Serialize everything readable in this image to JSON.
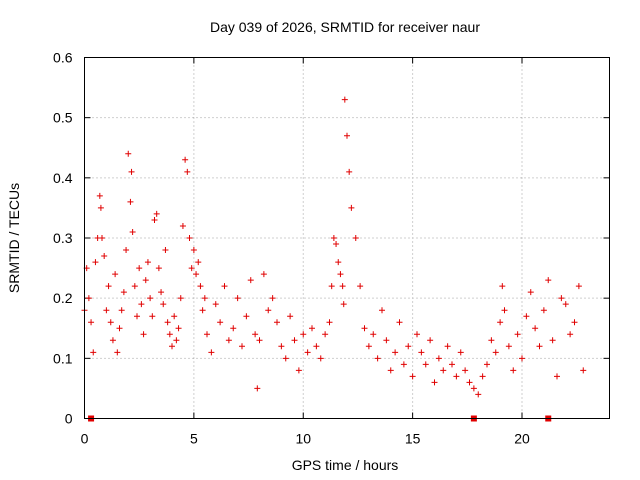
{
  "chart_data": {
    "type": "scatter",
    "title": "Day 039 of 2026, SRMTID for receiver naur",
    "xlabel": "GPS time / hours",
    "ylabel": "SRMTID / TECUs",
    "xlim": [
      0,
      24
    ],
    "ylim": [
      0,
      0.6
    ],
    "x_ticks": [
      0,
      5,
      10,
      15,
      20
    ],
    "x_tick_labels": [
      "0",
      "5",
      "10",
      "15",
      "20"
    ],
    "y_ticks": [
      0,
      0.1,
      0.2,
      0.3,
      0.4,
      0.5,
      0.6
    ],
    "y_tick_labels": [
      "0",
      "0.1",
      "0.2",
      "0.3",
      "0.4",
      "0.5",
      "0.6"
    ],
    "grid": true,
    "marker": "plus",
    "color": "#e00000",
    "series": [
      {
        "name": "SRMTID",
        "x": [
          0.0,
          0.1,
          0.2,
          0.3,
          0.4,
          0.5,
          0.6,
          0.7,
          0.75,
          0.8,
          0.9,
          1.0,
          1.1,
          1.2,
          1.3,
          1.4,
          1.5,
          1.6,
          1.7,
          1.8,
          1.9,
          2.0,
          2.1,
          2.15,
          2.2,
          2.3,
          2.4,
          2.5,
          2.6,
          2.7,
          2.8,
          2.9,
          3.0,
          3.1,
          3.2,
          3.3,
          3.4,
          3.5,
          3.6,
          3.7,
          3.8,
          3.9,
          4.0,
          4.1,
          4.2,
          4.3,
          4.4,
          4.5,
          4.6,
          4.7,
          4.8,
          4.9,
          5.0,
          5.1,
          5.2,
          5.3,
          5.4,
          5.5,
          5.6,
          5.8,
          6.0,
          6.2,
          6.4,
          6.6,
          6.8,
          7.0,
          7.2,
          7.4,
          7.6,
          7.8,
          7.9,
          8.0,
          8.2,
          8.4,
          8.6,
          8.8,
          9.0,
          9.2,
          9.4,
          9.6,
          9.8,
          10.0,
          10.2,
          10.4,
          10.6,
          10.8,
          11.0,
          11.2,
          11.3,
          11.4,
          11.5,
          11.6,
          11.7,
          11.8,
          11.85,
          11.9,
          12.0,
          12.1,
          12.2,
          12.4,
          12.6,
          12.8,
          13.0,
          13.2,
          13.4,
          13.6,
          13.8,
          14.0,
          14.2,
          14.4,
          14.6,
          14.8,
          15.0,
          15.2,
          15.4,
          15.6,
          15.8,
          16.0,
          16.2,
          16.4,
          16.6,
          16.8,
          17.0,
          17.2,
          17.4,
          17.6,
          17.8,
          18.0,
          18.2,
          18.4,
          18.6,
          18.8,
          19.0,
          19.1,
          19.2,
          19.4,
          19.6,
          19.8,
          20.0,
          20.2,
          20.4,
          20.6,
          20.8,
          21.0,
          21.2,
          21.4,
          21.6,
          21.8,
          22.0,
          22.2,
          22.4,
          22.6,
          22.8
        ],
        "y": [
          0.18,
          0.25,
          0.2,
          0.16,
          0.11,
          0.26,
          0.3,
          0.37,
          0.35,
          0.3,
          0.27,
          0.18,
          0.22,
          0.16,
          0.13,
          0.24,
          0.11,
          0.15,
          0.18,
          0.21,
          0.28,
          0.44,
          0.36,
          0.41,
          0.31,
          0.22,
          0.17,
          0.25,
          0.19,
          0.14,
          0.23,
          0.26,
          0.2,
          0.17,
          0.33,
          0.34,
          0.25,
          0.21,
          0.19,
          0.28,
          0.16,
          0.14,
          0.12,
          0.17,
          0.13,
          0.15,
          0.2,
          0.32,
          0.43,
          0.41,
          0.3,
          0.25,
          0.28,
          0.24,
          0.26,
          0.22,
          0.18,
          0.2,
          0.14,
          0.11,
          0.19,
          0.16,
          0.22,
          0.13,
          0.15,
          0.2,
          0.12,
          0.17,
          0.23,
          0.14,
          0.05,
          0.13,
          0.24,
          0.18,
          0.2,
          0.16,
          0.12,
          0.1,
          0.17,
          0.13,
          0.08,
          0.14,
          0.11,
          0.15,
          0.12,
          0.1,
          0.14,
          0.16,
          0.22,
          0.3,
          0.29,
          0.26,
          0.24,
          0.22,
          0.19,
          0.53,
          0.47,
          0.41,
          0.35,
          0.3,
          0.22,
          0.15,
          0.12,
          0.14,
          0.1,
          0.18,
          0.13,
          0.08,
          0.11,
          0.16,
          0.09,
          0.12,
          0.07,
          0.14,
          0.11,
          0.09,
          0.13,
          0.06,
          0.1,
          0.08,
          0.12,
          0.09,
          0.07,
          0.11,
          0.08,
          0.06,
          0.05,
          0.04,
          0.07,
          0.09,
          0.13,
          0.11,
          0.16,
          0.22,
          0.18,
          0.12,
          0.08,
          0.14,
          0.1,
          0.17,
          0.21,
          0.15,
          0.12,
          0.18,
          0.23,
          0.13,
          0.07,
          0.2,
          0.19,
          0.14,
          0.16,
          0.22,
          0.08
        ]
      }
    ],
    "zero_markers_x": [
      0.3,
      17.8,
      21.2
    ]
  }
}
